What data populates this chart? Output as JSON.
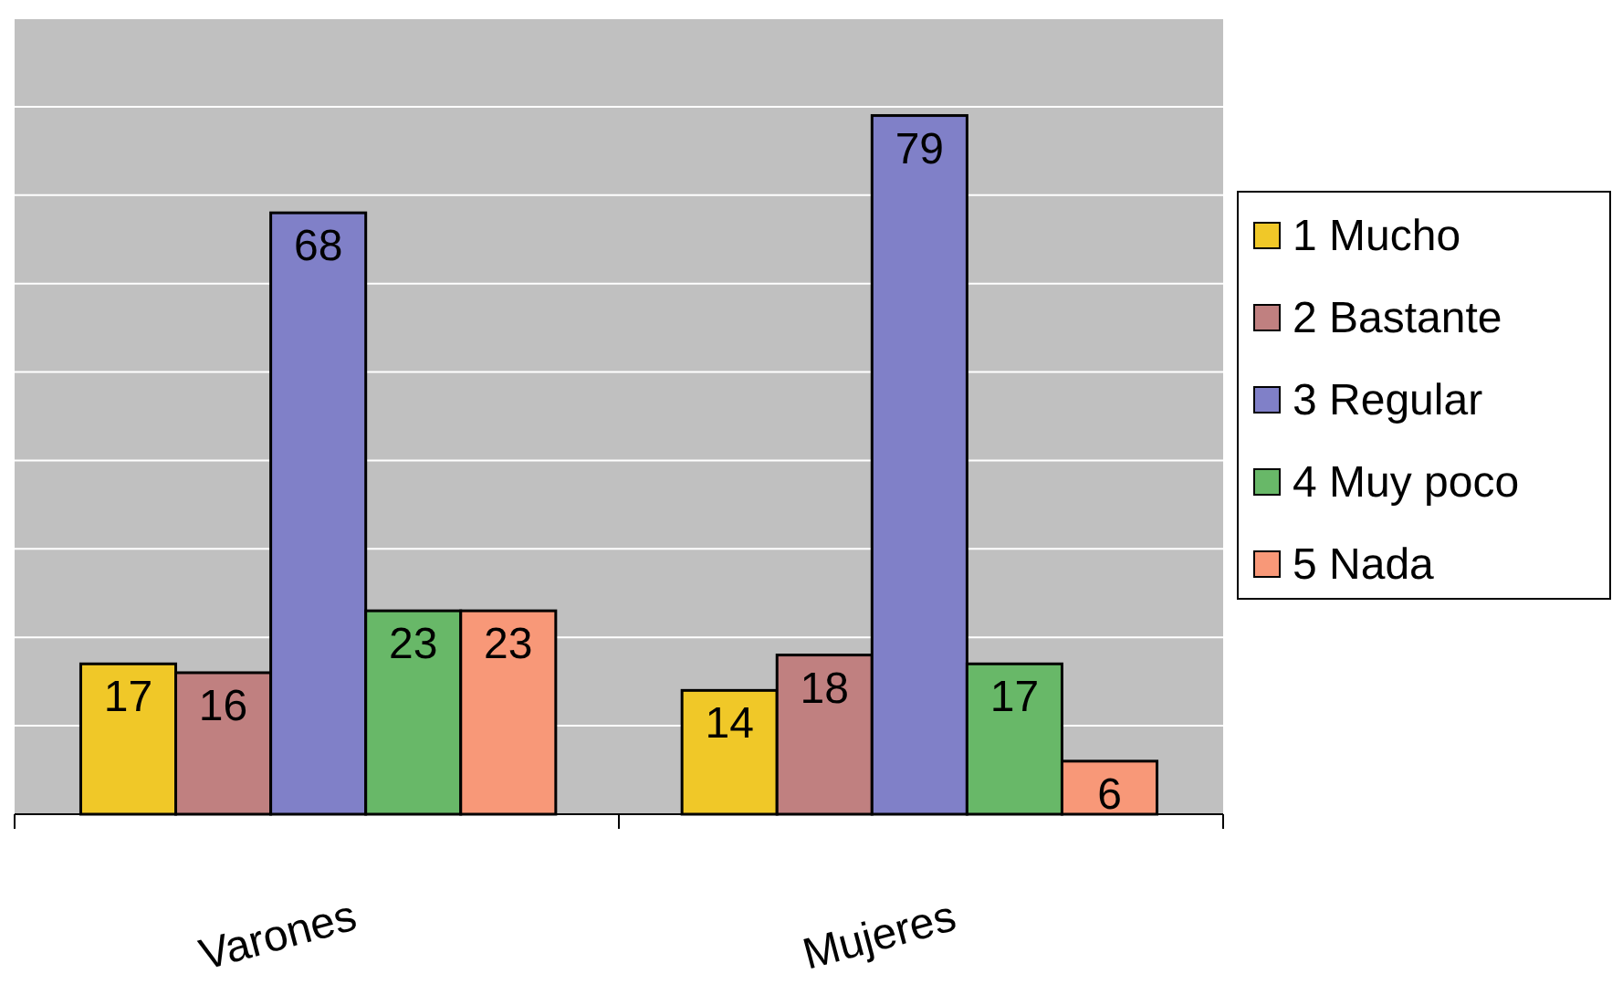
{
  "chart_data": {
    "type": "bar",
    "categories": [
      "Varones",
      "Mujeres"
    ],
    "series": [
      {
        "name": "1 Mucho",
        "color": "#f0c828",
        "values": [
          17,
          14
        ]
      },
      {
        "name": "2 Bastante",
        "color": "#c08080",
        "values": [
          16,
          18
        ]
      },
      {
        "name": "3 Regular",
        "color": "#8080c8",
        "values": [
          68,
          79
        ]
      },
      {
        "name": "4 Muy poco",
        "color": "#68b868",
        "values": [
          23,
          17
        ]
      },
      {
        "name": "5 Nada",
        "color": "#f89878",
        "values": [
          23,
          6
        ]
      }
    ],
    "ylim": [
      0,
      90
    ],
    "yticks": [
      {
        "value": 0,
        "label": null
      },
      {
        "value": 10,
        "label": null
      },
      {
        "value": 20,
        "label": null
      },
      {
        "value": 30,
        "label": null
      },
      {
        "value": 40,
        "label": null
      },
      {
        "value": 50,
        "label": null
      },
      {
        "value": 60,
        "label": null
      },
      {
        "value": 70,
        "label": null
      },
      {
        "value": 80,
        "label": null
      },
      {
        "value": 90,
        "label": null
      }
    ],
    "grid": "y",
    "legend": "right",
    "data_labels": true,
    "tick_labels": "x"
  }
}
